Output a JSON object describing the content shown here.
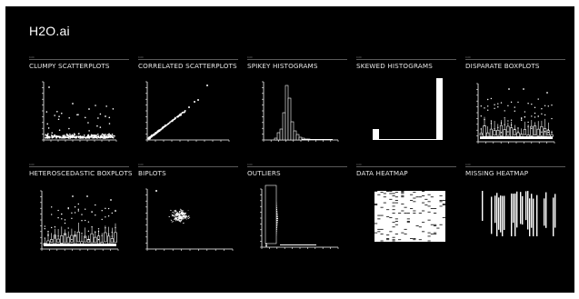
{
  "app": {
    "title": "H2O.ai"
  },
  "panels": [
    {
      "id": "clumpy-scatterplots",
      "title": "CLUMPY SCATTERPLOTS",
      "kind": "scatter",
      "tick": "0.00"
    },
    {
      "id": "correlated-scatterplots",
      "title": "CORRELATED SCATTERPLOTS",
      "kind": "correlated",
      "tick": "0.00"
    },
    {
      "id": "spikey-histograms",
      "title": "SPIKEY HISTOGRAMS",
      "kind": "spikey",
      "tick": "0.00"
    },
    {
      "id": "skewed-histograms",
      "title": "SKEWED HISTOGRAMS",
      "kind": "skewed",
      "tick": "0.00"
    },
    {
      "id": "disparate-boxplots",
      "title": "DISPARATE BOXPLOTS",
      "kind": "boxplots",
      "tick": "0.00"
    },
    {
      "id": "heteroscedastic-boxplots",
      "title": "HETEROSCEDASTIC BOXPLOTS",
      "kind": "boxplots",
      "tick": "0.00"
    },
    {
      "id": "biplots",
      "title": "BIPLOTS",
      "kind": "biplot",
      "tick": "0.00"
    },
    {
      "id": "outliers",
      "title": "OUTLIERS",
      "kind": "outliers",
      "tick": "0.00"
    },
    {
      "id": "data-heatmap",
      "title": "DATA HEATMAP",
      "kind": "dataheatmap",
      "tick": "0.00"
    },
    {
      "id": "missing-heatmap",
      "title": "MISSING HEATMAP",
      "kind": "missingheatmap",
      "tick": "0.00"
    }
  ],
  "colors": {
    "background": "#000000",
    "foreground": "#ffffff",
    "rule": "#5a5a5a"
  }
}
